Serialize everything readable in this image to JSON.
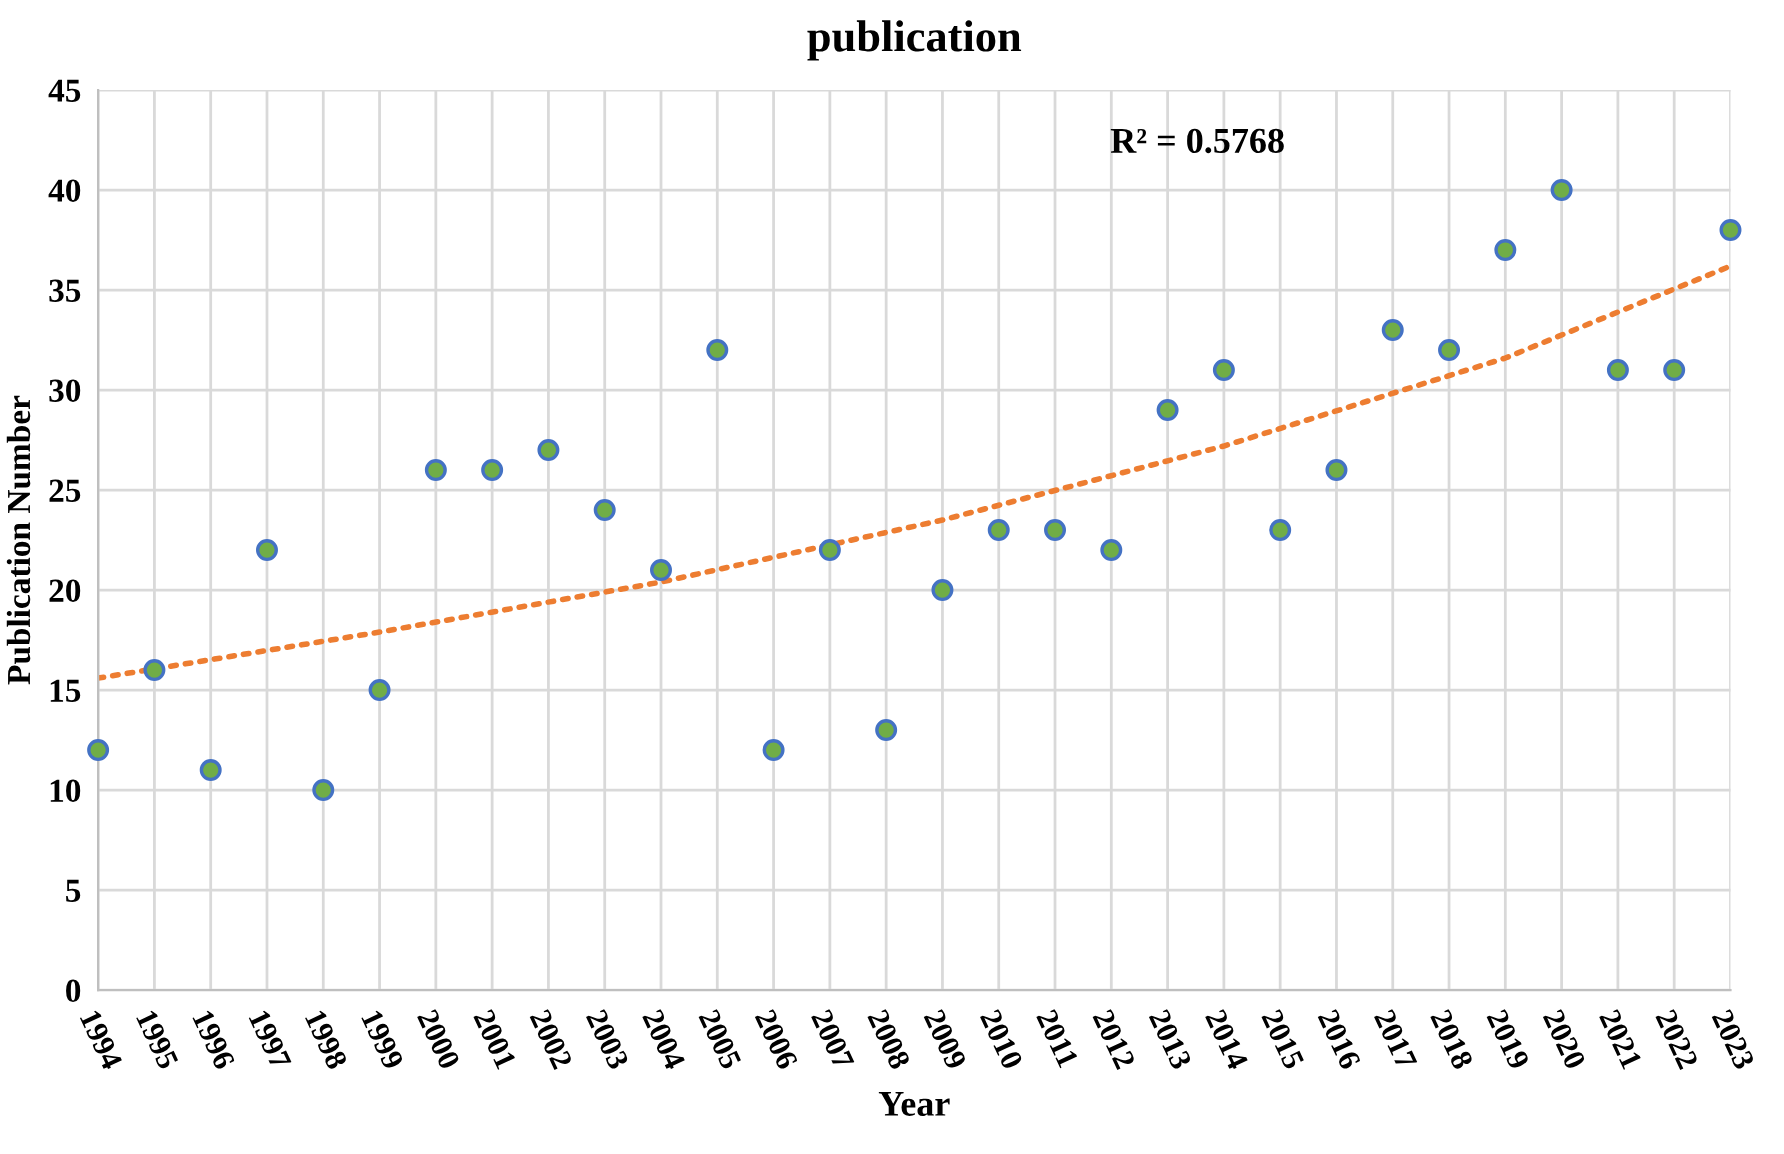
{
  "chart_data": {
    "type": "scatter",
    "title": "publication",
    "xlabel": "Year",
    "ylabel": "Publication Number",
    "x": [
      1994,
      1995,
      1996,
      1997,
      1998,
      1999,
      2000,
      2001,
      2002,
      2003,
      2004,
      2005,
      2006,
      2007,
      2008,
      2009,
      2010,
      2011,
      2012,
      2013,
      2014,
      2015,
      2016,
      2017,
      2018,
      2019,
      2020,
      2021,
      2022,
      2023
    ],
    "series": [
      {
        "color": "#70ad47",
        "marker": "circle",
        "values": [
          12,
          16,
          11,
          22,
          10,
          15,
          26,
          26,
          27,
          24,
          21,
          32,
          12,
          22,
          13,
          20,
          23,
          23,
          22,
          29,
          31,
          23,
          26,
          33,
          32,
          37,
          40,
          31,
          31,
          38
        ]
      },
      {
        "type": "line",
        "color": "#ed7d31",
        "line_style": "dotted",
        "marker": "none",
        "x": [
          1994,
          1999,
          2004,
          2009,
          2014,
          2019,
          2023
        ],
        "values": [
          15.6,
          17.9,
          20.4,
          23.5,
          27.2,
          31.6,
          36.2
        ]
      }
    ],
    "annotations": [
      "R² = 0.5768"
    ],
    "xlim": [
      1994,
      2023
    ],
    "xticks": [
      1994,
      1995,
      1996,
      1997,
      1998,
      1999,
      2000,
      2001,
      2002,
      2003,
      2004,
      2005,
      2006,
      2007,
      2008,
      2009,
      2010,
      2011,
      2012,
      2013,
      2014,
      2015,
      2016,
      2017,
      2018,
      2019,
      2020,
      2021,
      2022,
      2023
    ],
    "ylim": [
      0,
      45
    ],
    "yticks": [
      0,
      5,
      10,
      15,
      20,
      25,
      30,
      35,
      40,
      45
    ],
    "grid": true,
    "legend": false
  }
}
